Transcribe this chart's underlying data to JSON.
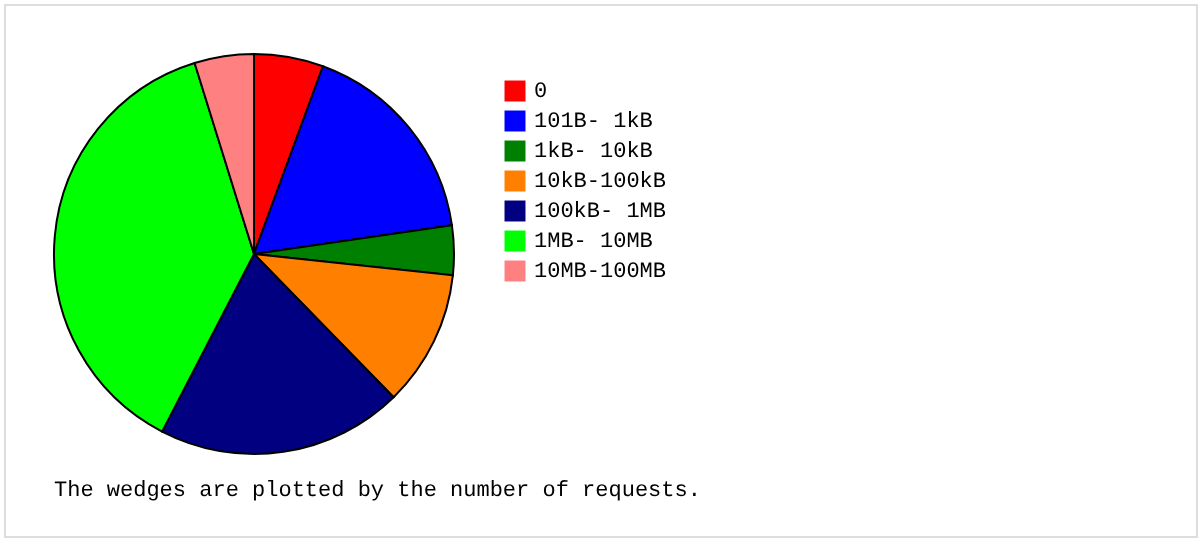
{
  "chart_data": {
    "type": "pie",
    "categories": [
      "0",
      "101B-  1kB",
      "1kB- 10kB",
      "10kB-100kB",
      "100kB-  1MB",
      "1MB- 10MB",
      "10MB-100MB"
    ],
    "values": [
      5.6,
      17.1,
      4.0,
      11.0,
      19.9,
      37.6,
      4.8
    ],
    "colors": [
      "#ff0000",
      "#0000ff",
      "#008000",
      "#ff8000",
      "#000080",
      "#00ff00",
      "#ff8080"
    ],
    "legend": "right",
    "annotations": [
      "The wedges are plotted by the number of requests."
    ]
  }
}
